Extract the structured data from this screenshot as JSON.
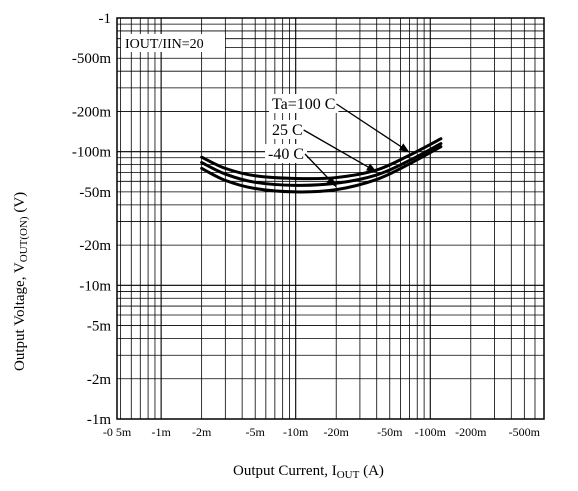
{
  "chart_data": {
    "type": "line",
    "xlabel_main": "Output Current, I",
    "xlabel_sub": "OUT",
    "xlabel_unit": " (A)",
    "ylabel_main": "Output Voltage, V",
    "ylabel_sub": "OUT(ON)",
    "ylabel_unit": " (V)",
    "x_scale": "log",
    "y_scale": "log",
    "xlim": [
      -0.00047,
      -0.7
    ],
    "ylim": [
      -0.001,
      -1
    ],
    "grid": true,
    "condition_label": "IOUT/IIN=20",
    "x_ticks": [
      {
        "value": -0.00047,
        "label": "-0 5m"
      },
      {
        "value": -0.001,
        "label": "-1m"
      },
      {
        "value": -0.002,
        "label": "-2m"
      },
      {
        "value": -0.005,
        "label": "-5m"
      },
      {
        "value": -0.01,
        "label": "-10m"
      },
      {
        "value": -0.02,
        "label": "-20m"
      },
      {
        "value": -0.05,
        "label": "-50m"
      },
      {
        "value": -0.1,
        "label": "-100m"
      },
      {
        "value": -0.2,
        "label": "-200m"
      },
      {
        "value": -0.5,
        "label": "-500m"
      }
    ],
    "y_ticks": [
      {
        "value": -1,
        "label": "-1"
      },
      {
        "value": -0.5,
        "label": "-500m"
      },
      {
        "value": -0.2,
        "label": "-200m"
      },
      {
        "value": -0.1,
        "label": "-100m"
      },
      {
        "value": -0.05,
        "label": "-50m"
      },
      {
        "value": -0.02,
        "label": "-20m"
      },
      {
        "value": -0.01,
        "label": "-10m"
      },
      {
        "value": -0.005,
        "label": "-5m"
      },
      {
        "value": -0.002,
        "label": "-2m"
      },
      {
        "value": -0.001,
        "label": "-1m"
      }
    ],
    "series": [
      {
        "name": "Ta=100 C",
        "x": [
          -0.002,
          -0.003,
          -0.005,
          -0.01,
          -0.02,
          -0.04,
          -0.07,
          -0.12
        ],
        "y": [
          -0.091,
          -0.075,
          -0.066,
          -0.063,
          -0.064,
          -0.073,
          -0.094,
          -0.125
        ]
      },
      {
        "name": "25 C",
        "x": [
          -0.002,
          -0.003,
          -0.005,
          -0.01,
          -0.02,
          -0.04,
          -0.07,
          -0.12
        ],
        "y": [
          -0.083,
          -0.068,
          -0.059,
          -0.056,
          -0.058,
          -0.067,
          -0.086,
          -0.115
        ]
      },
      {
        "name": "-40 C",
        "x": [
          -0.002,
          -0.003,
          -0.005,
          -0.01,
          -0.02,
          -0.04,
          -0.07,
          -0.12
        ],
        "y": [
          -0.075,
          -0.061,
          -0.053,
          -0.05,
          -0.052,
          -0.062,
          -0.081,
          -0.109
        ]
      }
    ]
  }
}
